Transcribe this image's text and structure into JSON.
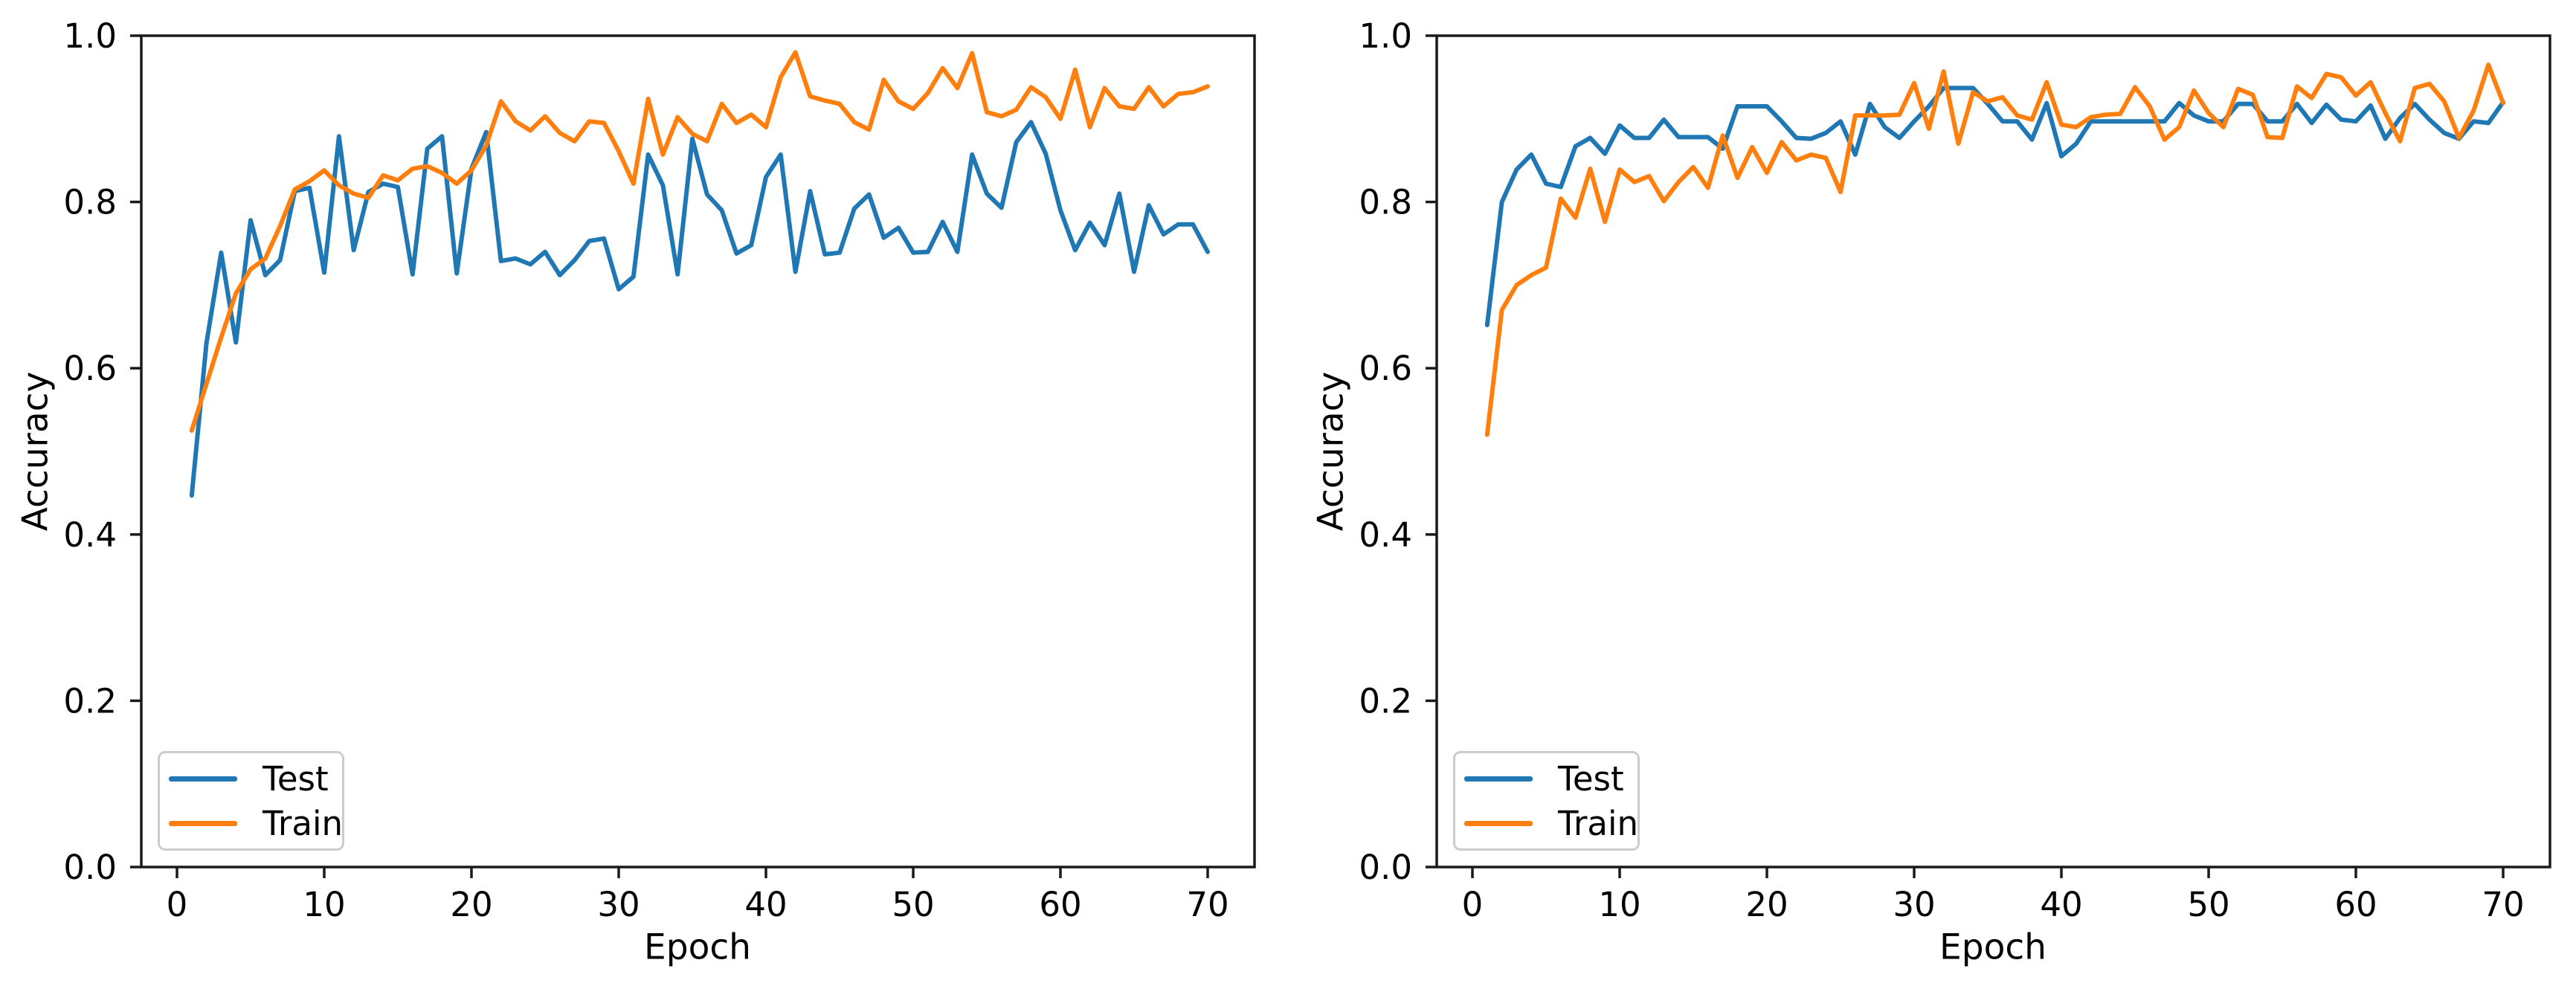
{
  "figure": {
    "background": "#ffffff",
    "description": "Two matplotlib line charts of model accuracy vs training epoch"
  },
  "colors": {
    "test_line": "#1f77b4",
    "train_line": "#ff7f0e",
    "axis": "#000000",
    "legend_border": "#cccccc"
  },
  "chart_data": [
    {
      "type": "line",
      "title": "",
      "xlabel": "Epoch",
      "ylabel": "Accuracy",
      "xlim": [
        -2.4,
        73.2
      ],
      "ylim": [
        0.0,
        1.0
      ],
      "grid": false,
      "legend_position": "lower left",
      "xticks": [
        "0",
        "10",
        "20",
        "30",
        "40",
        "50",
        "60",
        "70"
      ],
      "xtick_values": [
        0,
        10,
        20,
        30,
        40,
        50,
        60,
        70
      ],
      "yticks": [
        "0.0",
        "0.2",
        "0.4",
        "0.6",
        "0.8",
        "1.0"
      ],
      "ytick_values": [
        0.0,
        0.2,
        0.4,
        0.6,
        0.8,
        1.0
      ],
      "x": [
        1,
        2,
        3,
        4,
        5,
        6,
        7,
        8,
        9,
        10,
        11,
        12,
        13,
        14,
        15,
        16,
        17,
        18,
        19,
        20,
        21,
        22,
        23,
        24,
        25,
        26,
        27,
        28,
        29,
        30,
        31,
        32,
        33,
        34,
        35,
        36,
        37,
        38,
        39,
        40,
        41,
        42,
        43,
        44,
        45,
        46,
        47,
        48,
        49,
        50,
        51,
        52,
        53,
        54,
        55,
        56,
        57,
        58,
        59,
        60,
        61,
        62,
        63,
        64,
        65,
        66,
        67,
        68,
        69,
        70
      ],
      "series": [
        {
          "name": "Test",
          "color": "#1f77b4",
          "values": [
            0.447,
            0.63,
            0.739,
            0.631,
            0.778,
            0.712,
            0.73,
            0.813,
            0.817,
            0.715,
            0.879,
            0.742,
            0.812,
            0.822,
            0.818,
            0.713,
            0.864,
            0.879,
            0.714,
            0.84,
            0.884,
            0.729,
            0.732,
            0.725,
            0.74,
            0.712,
            0.73,
            0.753,
            0.756,
            0.695,
            0.71,
            0.857,
            0.82,
            0.713,
            0.876,
            0.809,
            0.79,
            0.738,
            0.748,
            0.83,
            0.857,
            0.716,
            0.813,
            0.737,
            0.739,
            0.792,
            0.809,
            0.757,
            0.769,
            0.739,
            0.74,
            0.776,
            0.74,
            0.857,
            0.81,
            0.793,
            0.872,
            0.896,
            0.858,
            0.79,
            0.742,
            0.775,
            0.748,
            0.81,
            0.716,
            0.796,
            0.761,
            0.773,
            0.773,
            0.74
          ]
        },
        {
          "name": "Train",
          "color": "#ff7f0e",
          "values": [
            0.525,
            0.581,
            0.637,
            0.69,
            0.719,
            0.732,
            0.771,
            0.815,
            0.825,
            0.838,
            0.82,
            0.81,
            0.805,
            0.832,
            0.826,
            0.84,
            0.843,
            0.835,
            0.822,
            0.838,
            0.868,
            0.921,
            0.897,
            0.886,
            0.903,
            0.883,
            0.873,
            0.897,
            0.895,
            0.861,
            0.822,
            0.924,
            0.857,
            0.902,
            0.882,
            0.873,
            0.918,
            0.895,
            0.905,
            0.89,
            0.95,
            0.98,
            0.927,
            0.922,
            0.918,
            0.896,
            0.887,
            0.947,
            0.921,
            0.912,
            0.931,
            0.961,
            0.937,
            0.979,
            0.908,
            0.903,
            0.911,
            0.938,
            0.926,
            0.9,
            0.959,
            0.89,
            0.937,
            0.915,
            0.912,
            0.938,
            0.915,
            0.93,
            0.932,
            0.939
          ]
        }
      ]
    },
    {
      "type": "line",
      "title": "",
      "xlabel": "Epoch",
      "ylabel": "Accuracy",
      "xlim": [
        -2.4,
        73.2
      ],
      "ylim": [
        0.0,
        1.0
      ],
      "grid": false,
      "legend_position": "lower left",
      "xticks": [
        "0",
        "10",
        "20",
        "30",
        "40",
        "50",
        "60",
        "70"
      ],
      "xtick_values": [
        0,
        10,
        20,
        30,
        40,
        50,
        60,
        70
      ],
      "yticks": [
        "0.0",
        "0.2",
        "0.4",
        "0.6",
        "0.8",
        "1.0"
      ],
      "ytick_values": [
        0.0,
        0.2,
        0.4,
        0.6,
        0.8,
        1.0
      ],
      "x": [
        1,
        2,
        3,
        4,
        5,
        6,
        7,
        8,
        9,
        10,
        11,
        12,
        13,
        14,
        15,
        16,
        17,
        18,
        19,
        20,
        21,
        22,
        23,
        24,
        25,
        26,
        27,
        28,
        29,
        30,
        31,
        32,
        33,
        34,
        35,
        36,
        37,
        38,
        39,
        40,
        41,
        42,
        43,
        44,
        45,
        46,
        47,
        48,
        49,
        50,
        51,
        52,
        53,
        54,
        55,
        56,
        57,
        58,
        59,
        60,
        61,
        62,
        63,
        64,
        65,
        66,
        67,
        68,
        69,
        70
      ],
      "series": [
        {
          "name": "Test",
          "color": "#1f77b4",
          "values": [
            0.652,
            0.8,
            0.839,
            0.857,
            0.822,
            0.818,
            0.867,
            0.877,
            0.858,
            0.892,
            0.877,
            0.877,
            0.899,
            0.878,
            0.878,
            0.878,
            0.864,
            0.915,
            0.915,
            0.915,
            0.897,
            0.877,
            0.876,
            0.883,
            0.897,
            0.857,
            0.918,
            0.89,
            0.877,
            0.897,
            0.915,
            0.937,
            0.937,
            0.937,
            0.918,
            0.897,
            0.897,
            0.875,
            0.919,
            0.855,
            0.87,
            0.897,
            0.897,
            0.897,
            0.897,
            0.897,
            0.897,
            0.919,
            0.904,
            0.897,
            0.897,
            0.918,
            0.918,
            0.897,
            0.897,
            0.918,
            0.895,
            0.917,
            0.899,
            0.897,
            0.916,
            0.876,
            0.901,
            0.918,
            0.899,
            0.883,
            0.876,
            0.897,
            0.895,
            0.92
          ]
        },
        {
          "name": "Train",
          "color": "#ff7f0e",
          "values": [
            0.52,
            0.67,
            0.7,
            0.712,
            0.721,
            0.804,
            0.781,
            0.84,
            0.776,
            0.839,
            0.824,
            0.831,
            0.801,
            0.824,
            0.842,
            0.817,
            0.88,
            0.829,
            0.866,
            0.835,
            0.872,
            0.85,
            0.857,
            0.853,
            0.812,
            0.904,
            0.904,
            0.904,
            0.905,
            0.943,
            0.888,
            0.957,
            0.87,
            0.932,
            0.921,
            0.926,
            0.904,
            0.899,
            0.944,
            0.893,
            0.89,
            0.902,
            0.905,
            0.906,
            0.938,
            0.915,
            0.875,
            0.89,
            0.934,
            0.907,
            0.89,
            0.936,
            0.929,
            0.878,
            0.877,
            0.939,
            0.925,
            0.954,
            0.95,
            0.928,
            0.944,
            0.907,
            0.873,
            0.937,
            0.942,
            0.921,
            0.877,
            0.91,
            0.965,
            0.919
          ]
        }
      ]
    }
  ]
}
